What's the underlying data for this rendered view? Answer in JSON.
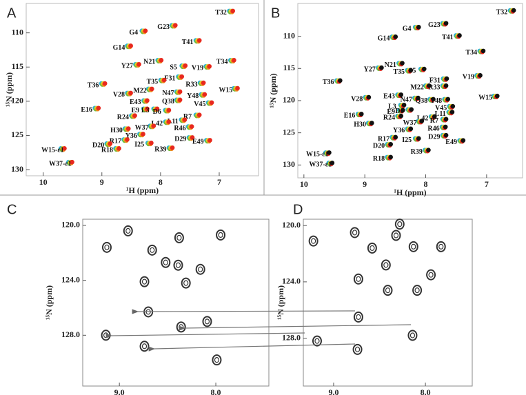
{
  "chart_data": [
    {
      "type": "scatter",
      "panel": "A",
      "xlabel": "¹H (ppm)",
      "ylabel": "¹⁵N (ppm)",
      "xlim": [
        10.29,
        6.33
      ],
      "ylim": [
        105.7,
        130.9
      ],
      "xticks": [
        10,
        9,
        8,
        7
      ],
      "yticks": [
        110,
        115,
        120,
        125,
        130
      ],
      "colors": [
        "#2bb3d8",
        "#6bbf3a",
        "#e3d22a",
        "#f08a1c",
        "#e8281e"
      ],
      "point_labels": [
        "T32",
        "G23",
        "G4",
        "T41",
        "G14",
        "Y27",
        "N21",
        "S5",
        "V19",
        "T34",
        "F31",
        "T35",
        "R33",
        "T36",
        "W15",
        "M22",
        "V28",
        "N47",
        "Y48",
        "Q38",
        "E43",
        "V45",
        "E16",
        "E9",
        "L3",
        "D6",
        "R24",
        "R7",
        "L11",
        "L42",
        "W37",
        "H30",
        "R46",
        "Y36",
        "R17",
        "I25",
        "D29",
        "E49",
        "D20",
        "R18",
        "R39",
        "W15-ε1",
        "W37-ε1"
      ],
      "x": [
        6.97,
        7.95,
        8.46,
        7.54,
        8.71,
        8.57,
        8.19,
        7.78,
        7.37,
        6.95,
        7.84,
        8.14,
        7.47,
        9.15,
        6.89,
        8.35,
        8.71,
        7.87,
        7.45,
        7.87,
        8.43,
        7.33,
        9.26,
        8.43,
        8.26,
        8.06,
        8.64,
        7.54,
        7.79,
        8.06,
        8.32,
        8.75,
        7.67,
        8.5,
        8.77,
        8.36,
        7.66,
        7.36,
        9.06,
        8.91,
        8.0,
        9.84,
        9.71
      ],
      "values": [
        107.1,
        109.2,
        110,
        111.4,
        112.2,
        114.9,
        114.3,
        115.1,
        115.2,
        114.3,
        116.7,
        117.2,
        117.6,
        117.7,
        118.4,
        118.5,
        119.1,
        118.9,
        119.3,
        120.1,
        120.2,
        120.5,
        121.3,
        121.4,
        121.4,
        121.6,
        122.4,
        122.3,
        123,
        123.3,
        123.9,
        124.3,
        124,
        125.1,
        125.9,
        126.4,
        125.6,
        126,
        126.5,
        127.2,
        127.1,
        127.2,
        129.2
      ]
    },
    {
      "type": "scatter",
      "panel": "B",
      "xlabel": "¹H (ppm)",
      "ylabel": "¹⁵N (ppm)",
      "xlim": [
        10.1,
        6.41
      ],
      "ylim": [
        104.9,
        132
      ],
      "xticks": [
        10,
        9,
        8,
        7
      ],
      "yticks": [
        110,
        115,
        120,
        125,
        130
      ],
      "colors": [
        "#2bb3d8",
        "#6bbf3a",
        "#e3d22a",
        "#e8281e",
        "#111111"
      ],
      "point_labels": [
        "T32",
        "G23",
        "G4",
        "T41",
        "G14",
        "T34",
        "N21",
        "Y27",
        "T35",
        "S5",
        "V19",
        "F31",
        "R33",
        "T36",
        "M22",
        "W15",
        "V28",
        "E43",
        "N47",
        "Q38",
        "Y48",
        "V45",
        "L3",
        "E9",
        "D6",
        "E16",
        "R24",
        "L11",
        "L42",
        "R7",
        "H30",
        "W37",
        "Y36",
        "R46",
        "R17",
        "I25",
        "D29",
        "E49",
        "D20",
        "R18",
        "R39",
        "W15-ε1",
        "W37-ε1"
      ],
      "x": [
        6.75,
        7.86,
        8.31,
        7.64,
        8.69,
        7.25,
        8.58,
        8.92,
        8.44,
        8.22,
        7.3,
        7.85,
        7.86,
        9.6,
        8.14,
        7.02,
        9.13,
        8.6,
        8.32,
        8.07,
        7.83,
        7.75,
        8.55,
        8.57,
        8.43,
        9.25,
        8.6,
        7.76,
        8.05,
        7.86,
        9.08,
        8.26,
        8.44,
        7.87,
        8.69,
        8.31,
        7.86,
        7.58,
        8.77,
        8.77,
        8.15,
        9.78,
        9.73
      ],
      "values": [
        106.3,
        108.3,
        108.9,
        110.2,
        110.4,
        112.6,
        114.5,
        115.2,
        115.6,
        115.4,
        116.4,
        116.9,
        118,
        117.2,
        118,
        119.6,
        119.8,
        119.4,
        119.9,
        120.1,
        120.1,
        121.2,
        121,
        121.8,
        121.7,
        122.4,
        122.7,
        122.1,
        122.8,
        123.2,
        123.8,
        123.5,
        124.7,
        124.4,
        126,
        126.2,
        125.7,
        126.5,
        127.1,
        129.1,
        128,
        128.4,
        130
      ]
    },
    {
      "type": "contour",
      "panel": "C",
      "xlabel": "¹H (ppm)",
      "ylabel": "¹⁵N (ppm)",
      "xlim": [
        9.38,
        7.45
      ],
      "ylim": [
        119.55,
        131.7
      ],
      "xticks": [
        {
          "value": 9,
          "label": "9.0"
        },
        {
          "value": 8,
          "label": "8.0"
        }
      ],
      "yticks": [
        {
          "value": 120,
          "label": "120.0"
        },
        {
          "value": 124,
          "label": "124.0"
        },
        {
          "value": 128,
          "label": "128.0"
        }
      ],
      "color": "#333333",
      "x": [
        8.91,
        9.13,
        8.66,
        8.74,
        8.39,
        9.14,
        8.7,
        8.36,
        8.74,
        7.99,
        8.09,
        7.95,
        8.38,
        8.52,
        8.31,
        8.16
      ],
      "values": [
        120.4,
        121.6,
        121.8,
        124.1,
        122.9,
        128.0,
        126.3,
        127.4,
        128.8,
        129.8,
        127.0,
        120.7,
        120.9,
        122.7,
        124.2,
        123.2
      ]
    },
    {
      "type": "contour",
      "panel": "D",
      "xlabel": "¹H (ppm)",
      "ylabel": "¹⁵N (ppm)",
      "xlim": [
        9.33,
        7.49
      ],
      "ylim": [
        119.55,
        131.4
      ],
      "xticks": [
        {
          "value": 9,
          "label": "9.0"
        },
        {
          "value": 8,
          "label": "8.0"
        }
      ],
      "yticks": [
        {
          "value": 120,
          "label": "120.0"
        },
        {
          "value": 124,
          "label": "124.0"
        },
        {
          "value": 128,
          "label": "128.0"
        }
      ],
      "color": "#333333",
      "x": [
        9.22,
        8.58,
        8.32,
        8.28,
        8.13,
        7.83,
        8.43,
        8.09,
        8.73,
        8.73,
        8.14,
        9.18,
        8.74,
        7.94,
        8.77,
        8.41
      ],
      "values": [
        121.1,
        121.6,
        120.7,
        119.9,
        121.5,
        121.5,
        122.8,
        124.6,
        123.8,
        126.5,
        127.8,
        128.2,
        128.8,
        123.5,
        120.5,
        124.6
      ]
    }
  ]
}
